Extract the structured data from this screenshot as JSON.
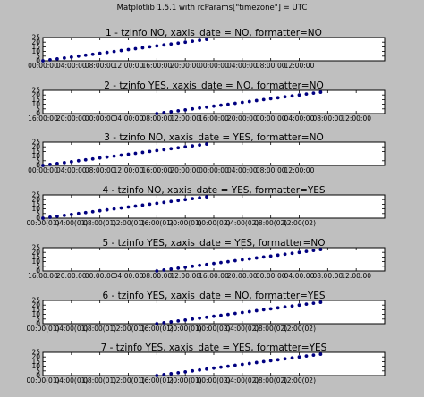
{
  "figure": {
    "title": "Matplotlib 1.5.1 with rcParams[\"timezone\"] = UTC",
    "background": "#bfbfbf",
    "axes_background": "#ffffff",
    "marker_color": "#000080"
  },
  "chart_data": [
    {
      "type": "scatter",
      "title": "1 - tzinfo NO, xaxis_date = NO, formatter=NO",
      "xlabel": "",
      "ylabel": "",
      "xlim": [
        0,
        48
      ],
      "ylim": [
        0,
        25
      ],
      "xticks": [
        0,
        4,
        8,
        12,
        16,
        20,
        24,
        28,
        32,
        36,
        40,
        44,
        48
      ],
      "xtick_labels": [
        "00:00:00",
        "04:00:00",
        "08:00:00",
        "12:00:00",
        "16:00:00",
        "20:00:00",
        "00:00:00",
        "04:00:00",
        "08:00:00",
        "12:00:00"
      ],
      "xtick_label_positions": [
        0,
        4,
        8,
        12,
        16,
        20,
        24,
        28,
        32,
        36
      ],
      "ytick_labels": [
        "25",
        "20",
        "15",
        "10",
        "5",
        "0"
      ],
      "series": [
        {
          "x": [
            0,
            1,
            2,
            3,
            4,
            5,
            6,
            7,
            8,
            9,
            10,
            11,
            12,
            13,
            14,
            15,
            16,
            17,
            18,
            19,
            20,
            21,
            22,
            23
          ],
          "y": [
            0,
            1,
            2,
            3,
            4,
            5,
            6,
            7,
            8,
            9,
            10,
            11,
            12,
            13,
            14,
            15,
            16,
            17,
            18,
            19,
            20,
            21,
            22,
            23
          ]
        }
      ],
      "grid": false
    },
    {
      "type": "scatter",
      "title": "2 - tzinfo YES, xaxis_date = NO, formatter=NO",
      "xlabel": "",
      "ylabel": "",
      "xlim": [
        0,
        48
      ],
      "ylim": [
        0,
        25
      ],
      "xtick_labels": [
        "16:00:00",
        "20:00:00",
        "00:00:00",
        "04:00:00",
        "08:00:00",
        "12:00:00",
        "16:00:00",
        "20:00:00",
        "00:00:00",
        "04:00:00",
        "08:00:00",
        "12:00:00"
      ],
      "xtick_label_positions": [
        0,
        4,
        8,
        12,
        16,
        20,
        24,
        28,
        32,
        36,
        40,
        44
      ],
      "ytick_labels": [
        "25",
        "20",
        "15",
        "10",
        "5",
        "0"
      ],
      "series": [
        {
          "x": [
            16,
            17,
            18,
            19,
            20,
            21,
            22,
            23,
            24,
            25,
            26,
            27,
            28,
            29,
            30,
            31,
            32,
            33,
            34,
            35,
            36,
            37,
            38,
            39
          ],
          "y": [
            0,
            1,
            2,
            3,
            4,
            5,
            6,
            7,
            8,
            9,
            10,
            11,
            12,
            13,
            14,
            15,
            16,
            17,
            18,
            19,
            20,
            21,
            22,
            23
          ]
        }
      ],
      "grid": false
    },
    {
      "type": "scatter",
      "title": "3 - tzinfo NO, xaxis_date = YES, formatter=NO",
      "xlabel": "",
      "ylabel": "",
      "xlim": [
        0,
        48
      ],
      "ylim": [
        0,
        25
      ],
      "xtick_labels": [
        "00:00:00",
        "04:00:00",
        "08:00:00",
        "12:00:00",
        "16:00:00",
        "20:00:00",
        "00:00:00",
        "04:00:00",
        "08:00:00",
        "12:00:00"
      ],
      "xtick_label_positions": [
        0,
        4,
        8,
        12,
        16,
        20,
        24,
        28,
        32,
        36
      ],
      "ytick_labels": [
        "25",
        "20",
        "15",
        "10",
        "5",
        "0"
      ],
      "series": [
        {
          "x": [
            0,
            1,
            2,
            3,
            4,
            5,
            6,
            7,
            8,
            9,
            10,
            11,
            12,
            13,
            14,
            15,
            16,
            17,
            18,
            19,
            20,
            21,
            22,
            23
          ],
          "y": [
            0,
            1,
            2,
            3,
            4,
            5,
            6,
            7,
            8,
            9,
            10,
            11,
            12,
            13,
            14,
            15,
            16,
            17,
            18,
            19,
            20,
            21,
            22,
            23
          ]
        }
      ],
      "grid": false
    },
    {
      "type": "scatter",
      "title": "4 - tzinfo NO, xaxis_date = YES, formatter=YES",
      "xlabel": "",
      "ylabel": "",
      "xlim": [
        0,
        48
      ],
      "ylim": [
        0,
        25
      ],
      "xtick_labels": [
        "00:00(01)",
        "04:00(01)",
        "08:00(01)",
        "12:00(01)",
        "16:00(01)",
        "20:00(01)",
        "00:00(02)",
        "04:00(02)",
        "08:00(02)",
        "12:00(02)"
      ],
      "xtick_label_positions": [
        0,
        4,
        8,
        12,
        16,
        20,
        24,
        28,
        32,
        36
      ],
      "ytick_labels": [
        "25",
        "20",
        "15",
        "10",
        "5",
        "0"
      ],
      "series": [
        {
          "x": [
            0,
            1,
            2,
            3,
            4,
            5,
            6,
            7,
            8,
            9,
            10,
            11,
            12,
            13,
            14,
            15,
            16,
            17,
            18,
            19,
            20,
            21,
            22,
            23
          ],
          "y": [
            0,
            1,
            2,
            3,
            4,
            5,
            6,
            7,
            8,
            9,
            10,
            11,
            12,
            13,
            14,
            15,
            16,
            17,
            18,
            19,
            20,
            21,
            22,
            23
          ]
        }
      ],
      "grid": false
    },
    {
      "type": "scatter",
      "title": "5 - tzinfo YES, xaxis_date = YES, formatter=NO",
      "xlabel": "",
      "ylabel": "",
      "xlim": [
        0,
        48
      ],
      "ylim": [
        0,
        25
      ],
      "xtick_labels": [
        "16:00:00",
        "20:00:00",
        "00:00:00",
        "04:00:00",
        "08:00:00",
        "12:00:00",
        "16:00:00",
        "20:00:00",
        "00:00:00",
        "04:00:00",
        "08:00:00",
        "12:00:00"
      ],
      "xtick_label_positions": [
        0,
        4,
        8,
        12,
        16,
        20,
        24,
        28,
        32,
        36,
        40,
        44
      ],
      "ytick_labels": [
        "25",
        "20",
        "15",
        "10",
        "5",
        "0"
      ],
      "series": [
        {
          "x": [
            16,
            17,
            18,
            19,
            20,
            21,
            22,
            23,
            24,
            25,
            26,
            27,
            28,
            29,
            30,
            31,
            32,
            33,
            34,
            35,
            36,
            37,
            38,
            39
          ],
          "y": [
            0,
            1,
            2,
            3,
            4,
            5,
            6,
            7,
            8,
            9,
            10,
            11,
            12,
            13,
            14,
            15,
            16,
            17,
            18,
            19,
            20,
            21,
            22,
            23
          ]
        }
      ],
      "grid": false
    },
    {
      "type": "scatter",
      "title": "6 - tzinfo YES, xaxis_date = NO, formatter=YES",
      "xlabel": "",
      "ylabel": "",
      "xlim": [
        0,
        48
      ],
      "ylim": [
        0,
        25
      ],
      "xtick_labels": [
        "00:00(01)",
        "04:00(01)",
        "08:00(01)",
        "12:00(01)",
        "16:00(01)",
        "20:00(01)",
        "00:00(02)",
        "04:00(02)",
        "08:00(02)",
        "12:00(02)"
      ],
      "xtick_label_positions": [
        0,
        4,
        8,
        12,
        16,
        20,
        24,
        28,
        32,
        36
      ],
      "ytick_labels": [
        "25",
        "20",
        "15",
        "10",
        "5",
        "0"
      ],
      "series": [
        {
          "x": [
            16,
            17,
            18,
            19,
            20,
            21,
            22,
            23,
            24,
            25,
            26,
            27,
            28,
            29,
            30,
            31,
            32,
            33,
            34,
            35,
            36,
            37,
            38,
            39
          ],
          "y": [
            0,
            1,
            2,
            3,
            4,
            5,
            6,
            7,
            8,
            9,
            10,
            11,
            12,
            13,
            14,
            15,
            16,
            17,
            18,
            19,
            20,
            21,
            22,
            23
          ]
        }
      ],
      "grid": false
    },
    {
      "type": "scatter",
      "title": "7 - tzinfo YES, xaxis_date = YES, formatter=YES",
      "xlabel": "",
      "ylabel": "",
      "xlim": [
        0,
        48
      ],
      "ylim": [
        0,
        25
      ],
      "xtick_labels": [
        "00:00(01)",
        "04:00(01)",
        "08:00(01)",
        "12:00(01)",
        "16:00(01)",
        "20:00(01)",
        "00:00(02)",
        "04:00(02)",
        "08:00(02)",
        "12:00(02)"
      ],
      "xtick_label_positions": [
        0,
        4,
        8,
        12,
        16,
        20,
        24,
        28,
        32,
        36
      ],
      "ytick_labels": [
        "25",
        "20",
        "15",
        "10",
        "5",
        "0"
      ],
      "series": [
        {
          "x": [
            16,
            17,
            18,
            19,
            20,
            21,
            22,
            23,
            24,
            25,
            26,
            27,
            28,
            29,
            30,
            31,
            32,
            33,
            34,
            35,
            36,
            37,
            38,
            39
          ],
          "y": [
            0,
            1,
            2,
            3,
            4,
            5,
            6,
            7,
            8,
            9,
            10,
            11,
            12,
            13,
            14,
            15,
            16,
            17,
            18,
            19,
            20,
            21,
            22,
            23
          ]
        }
      ],
      "grid": false
    }
  ]
}
